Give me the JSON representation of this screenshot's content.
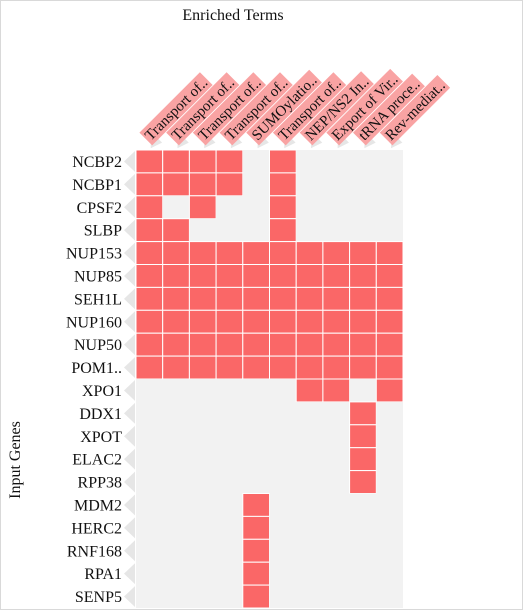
{
  "chart_data": {
    "type": "heatmap",
    "title": "Enriched Terms",
    "ylabel": "Input Genes",
    "columns": [
      "Transport of..",
      "Transport of..",
      "Transport of..",
      "Transport of..",
      "SUMOylatio..",
      "Transport of..",
      "NEP/NS2 In..",
      "Export of Vir..",
      "tRNA proce..",
      "Rev-mediat.."
    ],
    "rows": [
      "NCBP2",
      "NCBP1",
      "CPSF2",
      "SLBP",
      "NUP153",
      "NUP85",
      "SEH1L",
      "NUP160",
      "NUP50",
      "POM1..",
      "XPO1",
      "DDX1",
      "XPOT",
      "ELAC2",
      "RPP38",
      "MDM2",
      "HERC2",
      "RNF168",
      "RPA1",
      "SENP5"
    ],
    "matrix": [
      [
        1,
        1,
        1,
        1,
        0,
        1,
        0,
        0,
        0,
        0
      ],
      [
        1,
        1,
        1,
        1,
        0,
        1,
        0,
        0,
        0,
        0
      ],
      [
        1,
        0,
        1,
        0,
        0,
        1,
        0,
        0,
        0,
        0
      ],
      [
        1,
        1,
        0,
        0,
        0,
        1,
        0,
        0,
        0,
        0
      ],
      [
        1,
        1,
        1,
        1,
        1,
        1,
        1,
        1,
        1,
        1
      ],
      [
        1,
        1,
        1,
        1,
        1,
        1,
        1,
        1,
        1,
        1
      ],
      [
        1,
        1,
        1,
        1,
        1,
        1,
        1,
        1,
        1,
        1
      ],
      [
        1,
        1,
        1,
        1,
        1,
        1,
        1,
        1,
        1,
        1
      ],
      [
        1,
        1,
        1,
        1,
        1,
        1,
        1,
        1,
        1,
        1
      ],
      [
        1,
        1,
        1,
        1,
        1,
        1,
        1,
        1,
        1,
        1
      ],
      [
        0,
        0,
        0,
        0,
        0,
        0,
        1,
        1,
        0,
        1
      ],
      [
        0,
        0,
        0,
        0,
        0,
        0,
        0,
        0,
        1,
        0
      ],
      [
        0,
        0,
        0,
        0,
        0,
        0,
        0,
        0,
        1,
        0
      ],
      [
        0,
        0,
        0,
        0,
        0,
        0,
        0,
        0,
        1,
        0
      ],
      [
        0,
        0,
        0,
        0,
        0,
        0,
        0,
        0,
        1,
        0
      ],
      [
        0,
        0,
        0,
        0,
        1,
        0,
        0,
        0,
        0,
        0
      ],
      [
        0,
        0,
        0,
        0,
        1,
        0,
        0,
        0,
        0,
        0
      ],
      [
        0,
        0,
        0,
        0,
        1,
        0,
        0,
        0,
        0,
        0
      ],
      [
        0,
        0,
        0,
        0,
        1,
        0,
        0,
        0,
        0,
        0
      ],
      [
        0,
        0,
        0,
        0,
        1,
        0,
        0,
        0,
        0,
        0
      ]
    ],
    "colors": {
      "present": "#fa6767",
      "absent": "#f2f2f2",
      "label_bg": "#f9a3a3"
    },
    "grid": false,
    "legend": "none"
  }
}
